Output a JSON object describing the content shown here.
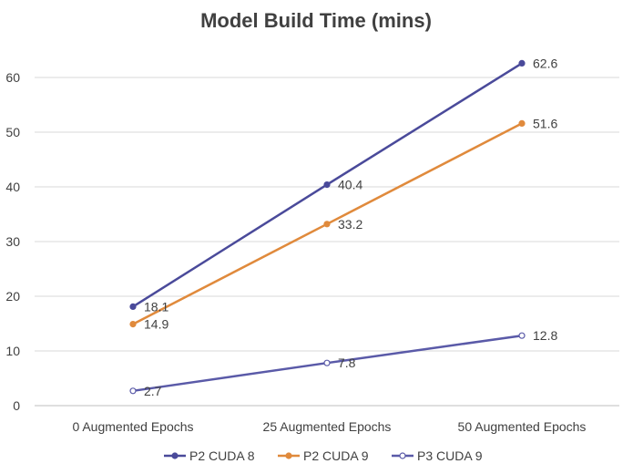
{
  "chart_data": {
    "type": "line",
    "title": "Model Build Time (mins)",
    "xlabel": "",
    "ylabel": "",
    "categories": [
      "0 Augmented Epochs",
      "25 Augmented Epochs",
      "50 Augmented Epochs"
    ],
    "ylim": [
      0,
      65
    ],
    "yticks": [
      "0",
      "10",
      "20",
      "30",
      "40",
      "50",
      "60"
    ],
    "grid": true,
    "legend_position": "bottom",
    "series": [
      {
        "name": "P2 CUDA 8",
        "values": [
          18.1,
          40.4,
          62.6
        ],
        "labels": [
          "18.1",
          "40.4",
          "62.6"
        ],
        "color": "#4a4a9a",
        "marker": "filled-circle"
      },
      {
        "name": "P2 CUDA 9",
        "values": [
          14.9,
          33.2,
          51.6
        ],
        "labels": [
          "14.9",
          "33.2",
          "51.6"
        ],
        "color": "#e08a3c",
        "marker": "filled-circle"
      },
      {
        "name": "P3 CUDA 9",
        "values": [
          2.7,
          7.8,
          12.8
        ],
        "labels": [
          "2.7",
          "7.8",
          "12.8"
        ],
        "color": "#5a5aa8",
        "marker": "hollow-circle"
      }
    ]
  }
}
